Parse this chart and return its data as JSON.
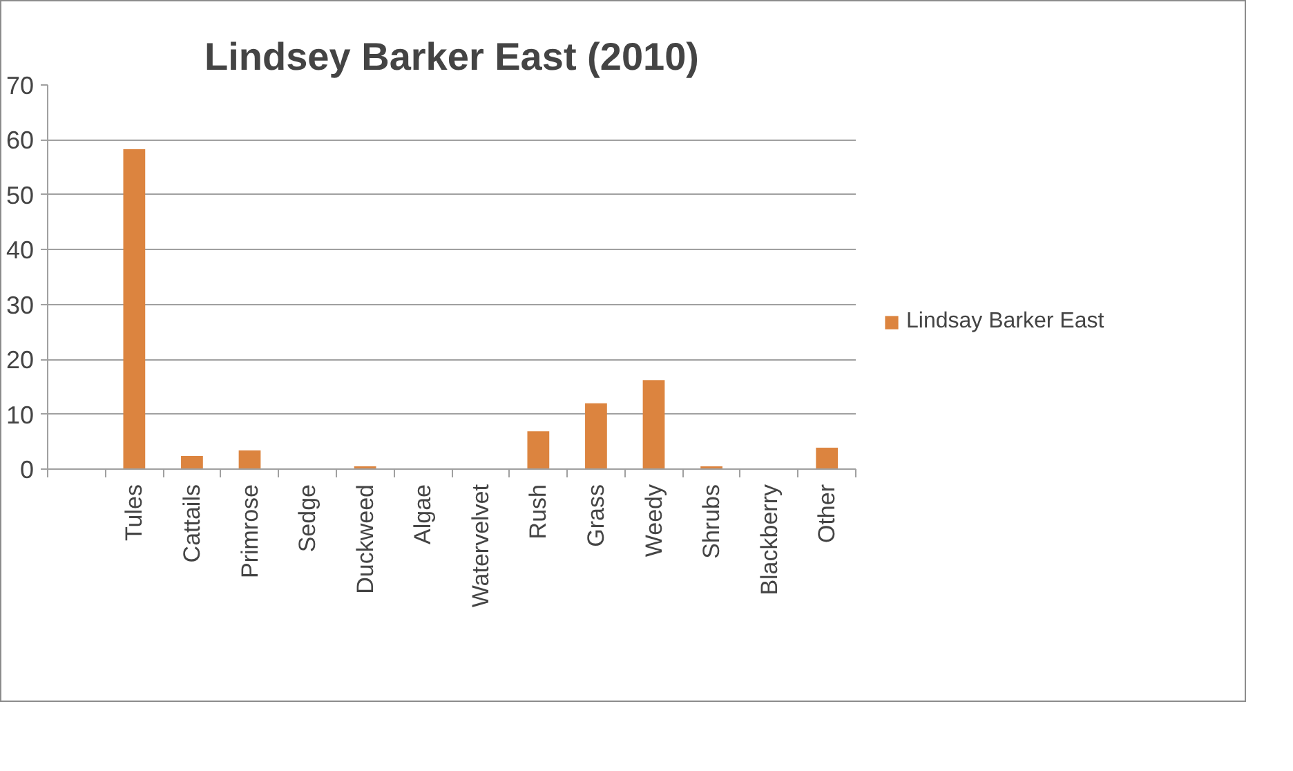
{
  "chart_data": {
    "type": "bar",
    "title": "Lindsey Barker East (2010)",
    "categories": [
      null,
      "Tules",
      "Cattails",
      "Primrose",
      "Sedge",
      "Duckweed",
      "Algae",
      "Watervelvet",
      "Rush",
      "Grass",
      "Weedy",
      "Shrubs",
      "Blackberry",
      "Other"
    ],
    "series": [
      {
        "name": "Lindsay Barker East",
        "color": "#dc843f",
        "values": [
          null,
          58.3,
          2.4,
          3.4,
          0,
          0.5,
          0,
          0,
          6.9,
          12.0,
          16.2,
          0.5,
          0,
          3.9
        ]
      }
    ],
    "ylim": [
      0,
      70
    ],
    "yticks": [
      0,
      10,
      20,
      30,
      40,
      50,
      60,
      70
    ],
    "grid": "y",
    "legend": "right"
  }
}
